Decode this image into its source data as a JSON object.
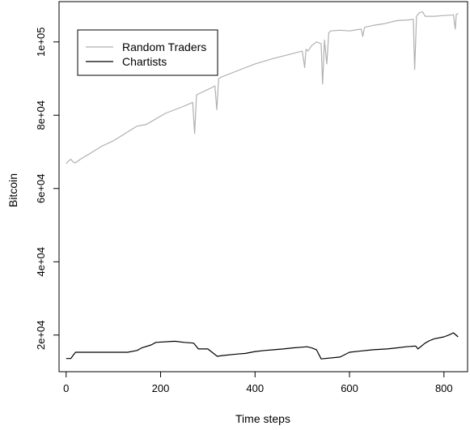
{
  "chart_data": {
    "type": "line",
    "title": "",
    "xlabel": "Time steps",
    "ylabel": "Bitcoin",
    "xlim": [
      -15,
      850
    ],
    "ylim": [
      10000,
      111000
    ],
    "xticks": [
      0,
      200,
      400,
      600,
      800
    ],
    "xtick_labels": [
      "0",
      "200",
      "400",
      "600",
      "800"
    ],
    "yticks": [
      20000,
      40000,
      60000,
      80000,
      100000
    ],
    "ytick_labels": [
      "2e+04",
      "4e+04",
      "6e+04",
      "8e+04",
      "1e+05"
    ],
    "grid": false,
    "legend": {
      "position": "top-left"
    },
    "series": [
      {
        "name": "Random Traders",
        "color": "#b0b0b0",
        "x": [
          0,
          5,
          10,
          15,
          20,
          30,
          50,
          75,
          100,
          125,
          150,
          170,
          190,
          210,
          230,
          250,
          268,
          272,
          276,
          280,
          300,
          315,
          319,
          323,
          330,
          360,
          400,
          440,
          470,
          500,
          505,
          508,
          512,
          520,
          530,
          540,
          543,
          547,
          552,
          556,
          560,
          580,
          600,
          625,
          628,
          632,
          650,
          675,
          700,
          725,
          735,
          738,
          742,
          748,
          755,
          760,
          780,
          800,
          815,
          820,
          824,
          826,
          830
        ],
        "values": [
          66800,
          67500,
          68000,
          67200,
          67000,
          68000,
          69500,
          71500,
          73000,
          75000,
          77000,
          77500,
          79000,
          80500,
          81500,
          82500,
          83500,
          75000,
          85500,
          85800,
          87000,
          88000,
          81500,
          90000,
          90500,
          92000,
          94000,
          95500,
          96500,
          97500,
          93000,
          98000,
          97500,
          99000,
          100000,
          99500,
          88500,
          100500,
          94000,
          102500,
          103000,
          103200,
          103000,
          103500,
          101500,
          104000,
          104500,
          105000,
          105800,
          106000,
          106200,
          92500,
          107000,
          108000,
          108200,
          107000,
          107000,
          107200,
          107300,
          107400,
          103500,
          107500,
          107800
        ]
      },
      {
        "name": "Chartists",
        "color": "#000000",
        "x": [
          0,
          10,
          15,
          20,
          130,
          150,
          160,
          180,
          190,
          230,
          250,
          270,
          280,
          300,
          320,
          330,
          360,
          380,
          400,
          420,
          440,
          460,
          480,
          500,
          510,
          520,
          530,
          540,
          580,
          600,
          620,
          650,
          680,
          700,
          720,
          740,
          745,
          760,
          770,
          780,
          800,
          810,
          820,
          830
        ],
        "values": [
          13600,
          13600,
          14500,
          15300,
          15300,
          15800,
          16500,
          17300,
          18000,
          18300,
          18000,
          17800,
          16200,
          16200,
          14200,
          14400,
          14800,
          15000,
          15500,
          15800,
          16000,
          16200,
          16500,
          16700,
          16800,
          16500,
          16000,
          13500,
          14000,
          15300,
          15600,
          16000,
          16200,
          16500,
          16800,
          17000,
          16200,
          17800,
          18500,
          19000,
          19500,
          20000,
          20600,
          19500
        ]
      }
    ]
  }
}
